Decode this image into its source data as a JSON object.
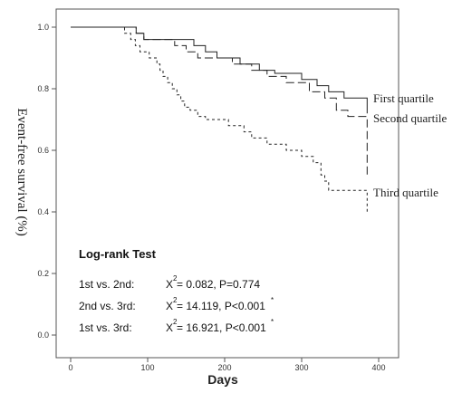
{
  "chart_data": {
    "type": "line",
    "title": "",
    "xlabel": "Days",
    "ylabel": "Event-free survival (%)",
    "xlim": [
      0,
      400
    ],
    "ylim": [
      0.0,
      1.0
    ],
    "x_ticks": [
      "0",
      "100",
      "200",
      "300",
      "400"
    ],
    "y_ticks": [
      "0.0",
      "0.2",
      "0.4",
      "0.6",
      "0.8",
      "1.0"
    ],
    "grid": false,
    "series": [
      {
        "name": "First quartile",
        "style": "solid",
        "points": [
          [
            0,
            1.0
          ],
          [
            85,
            1.0
          ],
          [
            85,
            0.98
          ],
          [
            95,
            0.98
          ],
          [
            95,
            0.96
          ],
          [
            160,
            0.96
          ],
          [
            160,
            0.94
          ],
          [
            175,
            0.94
          ],
          [
            175,
            0.92
          ],
          [
            190,
            0.92
          ],
          [
            190,
            0.9
          ],
          [
            220,
            0.9
          ],
          [
            220,
            0.88
          ],
          [
            245,
            0.88
          ],
          [
            245,
            0.86
          ],
          [
            265,
            0.86
          ],
          [
            265,
            0.85
          ],
          [
            300,
            0.85
          ],
          [
            300,
            0.83
          ],
          [
            320,
            0.83
          ],
          [
            320,
            0.81
          ],
          [
            335,
            0.81
          ],
          [
            335,
            0.79
          ],
          [
            355,
            0.79
          ],
          [
            355,
            0.77
          ],
          [
            385,
            0.77
          ],
          [
            385,
            0.72
          ]
        ]
      },
      {
        "name": "Second quartile",
        "style": "dashed",
        "points": [
          [
            0,
            1.0
          ],
          [
            85,
            1.0
          ],
          [
            85,
            0.98
          ],
          [
            95,
            0.98
          ],
          [
            95,
            0.96
          ],
          [
            135,
            0.96
          ],
          [
            135,
            0.94
          ],
          [
            150,
            0.94
          ],
          [
            150,
            0.92
          ],
          [
            165,
            0.92
          ],
          [
            165,
            0.9
          ],
          [
            210,
            0.9
          ],
          [
            210,
            0.88
          ],
          [
            235,
            0.88
          ],
          [
            235,
            0.86
          ],
          [
            255,
            0.86
          ],
          [
            255,
            0.84
          ],
          [
            280,
            0.84
          ],
          [
            280,
            0.82
          ],
          [
            310,
            0.82
          ],
          [
            310,
            0.79
          ],
          [
            330,
            0.79
          ],
          [
            330,
            0.77
          ],
          [
            345,
            0.77
          ],
          [
            345,
            0.73
          ],
          [
            360,
            0.73
          ],
          [
            360,
            0.71
          ],
          [
            385,
            0.71
          ],
          [
            385,
            0.52
          ]
        ]
      },
      {
        "name": "Third quartile",
        "style": "dotted",
        "points": [
          [
            0,
            1.0
          ],
          [
            70,
            1.0
          ],
          [
            70,
            0.98
          ],
          [
            78,
            0.98
          ],
          [
            78,
            0.96
          ],
          [
            84,
            0.96
          ],
          [
            84,
            0.94
          ],
          [
            90,
            0.94
          ],
          [
            90,
            0.92
          ],
          [
            102,
            0.92
          ],
          [
            102,
            0.9
          ],
          [
            112,
            0.9
          ],
          [
            112,
            0.88
          ],
          [
            116,
            0.88
          ],
          [
            116,
            0.86
          ],
          [
            120,
            0.86
          ],
          [
            120,
            0.84
          ],
          [
            126,
            0.84
          ],
          [
            126,
            0.82
          ],
          [
            132,
            0.82
          ],
          [
            132,
            0.8
          ],
          [
            138,
            0.8
          ],
          [
            138,
            0.78
          ],
          [
            143,
            0.78
          ],
          [
            143,
            0.76
          ],
          [
            148,
            0.76
          ],
          [
            148,
            0.74
          ],
          [
            155,
            0.74
          ],
          [
            155,
            0.73
          ],
          [
            165,
            0.73
          ],
          [
            165,
            0.71
          ],
          [
            175,
            0.71
          ],
          [
            175,
            0.7
          ],
          [
            205,
            0.7
          ],
          [
            205,
            0.68
          ],
          [
            225,
            0.68
          ],
          [
            225,
            0.66
          ],
          [
            235,
            0.66
          ],
          [
            235,
            0.64
          ],
          [
            255,
            0.64
          ],
          [
            255,
            0.62
          ],
          [
            280,
            0.62
          ],
          [
            280,
            0.6
          ],
          [
            300,
            0.6
          ],
          [
            300,
            0.58
          ],
          [
            315,
            0.58
          ],
          [
            315,
            0.56
          ],
          [
            325,
            0.56
          ],
          [
            325,
            0.52
          ],
          [
            330,
            0.52
          ],
          [
            330,
            0.5
          ],
          [
            335,
            0.5
          ],
          [
            335,
            0.47
          ],
          [
            385,
            0.47
          ],
          [
            385,
            0.4
          ]
        ]
      }
    ],
    "legend_labels": [
      "First quartile",
      "Second quartile",
      "Third quartile"
    ]
  },
  "stats_box": {
    "title": "Log-rank Test",
    "rows": [
      {
        "label": "1st  vs.  2nd:",
        "chi_symbol": "X",
        "chi_sup": "2",
        "stat": "= 0.082, P=0.774",
        "mark": ""
      },
      {
        "label": "2nd  vs.  3rd:",
        "chi_symbol": "X",
        "chi_sup": "2",
        "stat": "= 14.119, P<0.001",
        "mark": "*"
      },
      {
        "label": "1st  vs.  3rd:",
        "chi_symbol": "X",
        "chi_sup": "2",
        "stat": "= 16.921, P<0.001",
        "mark": "*"
      }
    ]
  }
}
